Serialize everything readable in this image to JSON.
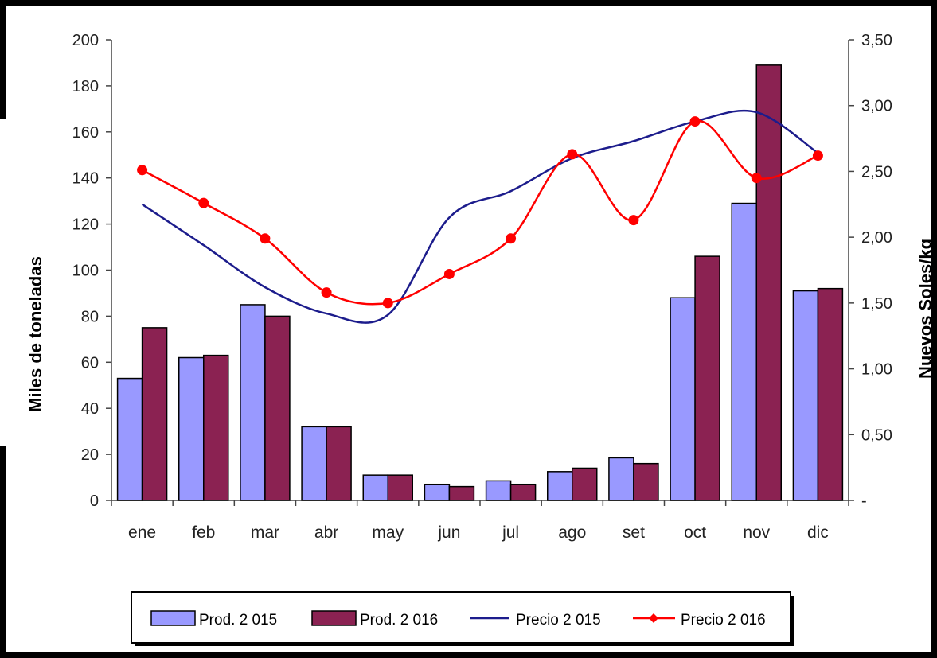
{
  "chart_data": {
    "type": "bar",
    "categories": [
      "ene",
      "feb",
      "mar",
      "abr",
      "may",
      "jun",
      "jul",
      "ago",
      "set",
      "oct",
      "nov",
      "dic"
    ],
    "ylabel": "Miles de toneladas",
    "y2label": "Nuevos Soles/kg",
    "ylim": [
      0,
      200
    ],
    "y2lim": [
      0,
      3.5
    ],
    "yticks": [
      "0",
      "20",
      "40",
      "60",
      "80",
      "100",
      "120",
      "140",
      "160",
      "180",
      "200"
    ],
    "y2ticks": [
      "-",
      "0,50",
      "1,00",
      "1,50",
      "2,00",
      "2,50",
      "3,00",
      "3,50"
    ],
    "series": [
      {
        "name": "Prod. 2 015",
        "type": "bar",
        "axis": "left",
        "color": "#9999ff",
        "values": [
          53,
          62,
          85,
          32,
          11,
          7,
          8.5,
          12.5,
          18.5,
          88,
          129,
          91
        ]
      },
      {
        "name": "Prod. 2 016",
        "type": "bar",
        "axis": "left",
        "color": "#8b2252",
        "values": [
          75,
          63,
          80,
          32,
          11,
          6,
          7,
          14,
          16,
          106,
          189,
          92
        ]
      },
      {
        "name": "Precio 2 015",
        "type": "line",
        "axis": "right",
        "color": "#1c1c8c",
        "marker": "none",
        "values": [
          2.25,
          1.94,
          1.62,
          1.42,
          1.41,
          2.15,
          2.35,
          2.6,
          2.73,
          2.88,
          2.95,
          2.64
        ]
      },
      {
        "name": "Precio 2 016",
        "type": "line",
        "axis": "right",
        "color": "#ff0000",
        "marker": "diamond",
        "values": [
          2.51,
          2.26,
          1.99,
          1.58,
          1.5,
          1.72,
          1.99,
          2.63,
          2.13,
          2.88,
          2.45,
          2.62
        ]
      }
    ],
    "grid": false,
    "legend_position": "bottom"
  }
}
